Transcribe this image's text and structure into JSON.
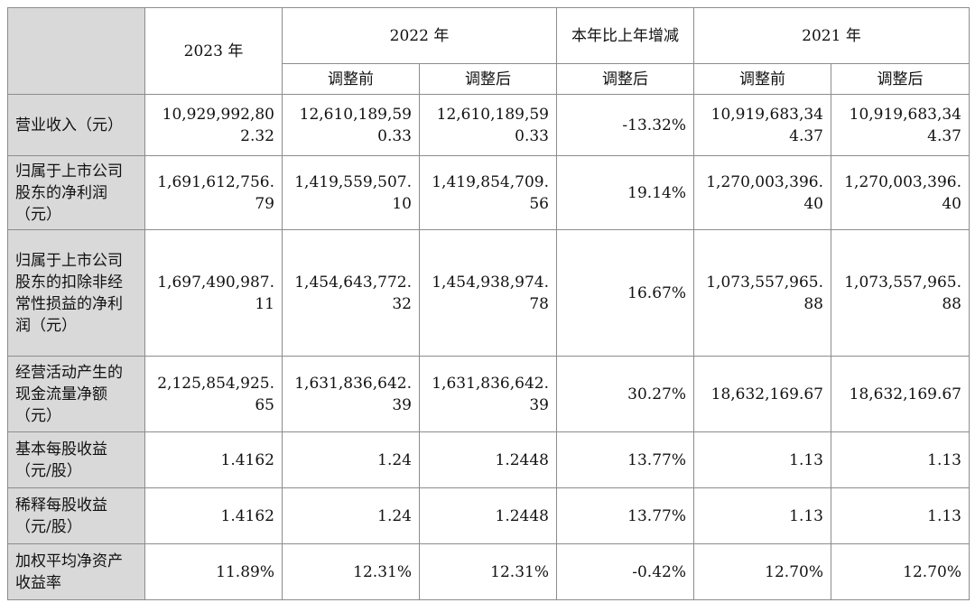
{
  "headers": {
    "y2023": "2023 年",
    "y2022": "2022 年",
    "yoy": "本年比上年增减",
    "y2021": "2021 年",
    "before": "调整前",
    "after": "调整后"
  },
  "rows": [
    {
      "label": "营业收入（元）",
      "v2023": "10,929,992,802.32",
      "v2022b": "12,610,189,590.33",
      "v2022a": "12,610,189,590.33",
      "yoy": "-13.32%",
      "v2021b": "10,919,683,344.37",
      "v2021a": "10,919,683,344.37"
    },
    {
      "label": "归属于上市公司股东的净利润（元）",
      "v2023": "1,691,612,756.79",
      "v2022b": "1,419,559,507.10",
      "v2022a": "1,419,854,709.56",
      "yoy": "19.14%",
      "v2021b": "1,270,003,396.40",
      "v2021a": "1,270,003,396.40"
    },
    {
      "label": "归属于上市公司股东的扣除非经常性损益的净利润（元）",
      "v2023": "1,697,490,987.11",
      "v2022b": "1,454,643,772.32",
      "v2022a": "1,454,938,974.78",
      "yoy": "16.67%",
      "v2021b": "1,073,557,965.88",
      "v2021a": "1,073,557,965.88"
    },
    {
      "label": "经营活动产生的现金流量净额（元）",
      "v2023": "2,125,854,925.65",
      "v2022b": "1,631,836,642.39",
      "v2022a": "1,631,836,642.39",
      "yoy": "30.27%",
      "v2021b": "18,632,169.67",
      "v2021a": "18,632,169.67"
    },
    {
      "label": "基本每股收益（元/股）",
      "v2023": "1.4162",
      "v2022b": "1.24",
      "v2022a": "1.2448",
      "yoy": "13.77%",
      "v2021b": "1.13",
      "v2021a": "1.13"
    },
    {
      "label": "稀释每股收益（元/股）",
      "v2023": "1.4162",
      "v2022b": "1.24",
      "v2022a": "1.2448",
      "yoy": "13.77%",
      "v2021b": "1.13",
      "v2021a": "1.13"
    },
    {
      "label": "加权平均净资产收益率",
      "v2023": "11.89%",
      "v2022b": "12.31%",
      "v2022a": "12.31%",
      "yoy": "-0.42%",
      "v2021b": "12.70%",
      "v2021a": "12.70%"
    }
  ]
}
